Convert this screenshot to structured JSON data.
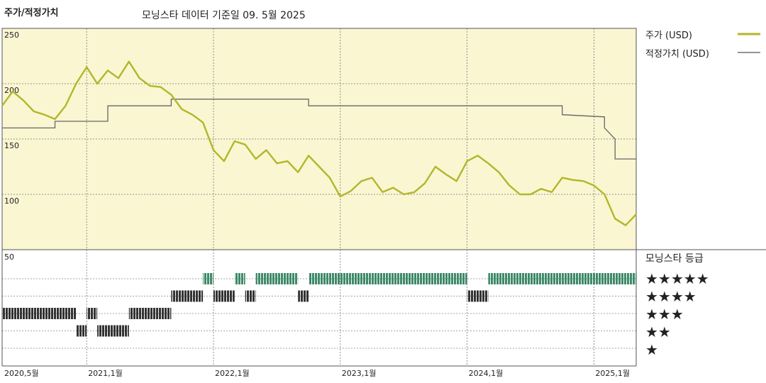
{
  "header": {
    "section_title": "주가/적정가치",
    "subtitle": "모닝스타 데이터 기준일 09. 5월 2025"
  },
  "legend": {
    "price_label": "주가 (USD)",
    "fair_value_label": "적정가치 (USD)",
    "rating_title": "모닝스타 등급",
    "stars": [
      "★★★★★",
      "★★★★",
      "★★★",
      "★★",
      "★"
    ]
  },
  "colors": {
    "price": "#b3b62a",
    "fair_value": "#666666",
    "panel_bg": "#faf6d2",
    "five_star": "#3f8a6a",
    "lower_star": "#333333"
  },
  "chart_data": {
    "type": "line",
    "x_range": [
      "2020-05",
      "2025-05"
    ],
    "x_ticks": [
      "2020,5월",
      "2021,1월",
      "2022,1월",
      "2023,1월",
      "2024,1월",
      "2025,1월"
    ],
    "y_ticks": [
      "250",
      "200",
      "150",
      "100"
    ],
    "ylim": [
      50,
      250
    ],
    "lower_ylabel": "50",
    "series": [
      {
        "id": "price",
        "points": [
          [
            "2020-05",
            180
          ],
          [
            "2020-06",
            193
          ],
          [
            "2020-07",
            185
          ],
          [
            "2020-08",
            175
          ],
          [
            "2020-09",
            172
          ],
          [
            "2020-10",
            168
          ],
          [
            "2020-11",
            180
          ],
          [
            "2020-12",
            200
          ],
          [
            "2021-01",
            215
          ],
          [
            "2021-02",
            200
          ],
          [
            "2021-03",
            212
          ],
          [
            "2021-04",
            205
          ],
          [
            "2021-05",
            220
          ],
          [
            "2021-06",
            205
          ],
          [
            "2021-07",
            198
          ],
          [
            "2021-08",
            197
          ],
          [
            "2021-09",
            190
          ],
          [
            "2021-10",
            177
          ],
          [
            "2021-11",
            172
          ],
          [
            "2021-12",
            165
          ],
          [
            "2022-01",
            140
          ],
          [
            "2022-02",
            130
          ],
          [
            "2022-03",
            148
          ],
          [
            "2022-04",
            145
          ],
          [
            "2022-05",
            132
          ],
          [
            "2022-06",
            140
          ],
          [
            "2022-07",
            128
          ],
          [
            "2022-08",
            130
          ],
          [
            "2022-09",
            120
          ],
          [
            "2022-10",
            135
          ],
          [
            "2022-11",
            125
          ],
          [
            "2022-12",
            115
          ],
          [
            "2023-01",
            98
          ],
          [
            "2023-02",
            103
          ],
          [
            "2023-03",
            112
          ],
          [
            "2023-04",
            115
          ],
          [
            "2023-05",
            102
          ],
          [
            "2023-06",
            106
          ],
          [
            "2023-07",
            100
          ],
          [
            "2023-08",
            102
          ],
          [
            "2023-09",
            110
          ],
          [
            "2023-10",
            125
          ],
          [
            "2023-11",
            118
          ],
          [
            "2023-12",
            112
          ],
          [
            "2024-01",
            130
          ],
          [
            "2024-02",
            135
          ],
          [
            "2024-03",
            128
          ],
          [
            "2024-04",
            120
          ],
          [
            "2024-05",
            108
          ],
          [
            "2024-06",
            100
          ],
          [
            "2024-07",
            100
          ],
          [
            "2024-08",
            105
          ],
          [
            "2024-09",
            102
          ],
          [
            "2024-10",
            115
          ],
          [
            "2024-11",
            113
          ],
          [
            "2024-12",
            112
          ],
          [
            "2025-01",
            108
          ],
          [
            "2025-02",
            100
          ],
          [
            "2025-03",
            78
          ],
          [
            "2025-04",
            72
          ],
          [
            "2025-05",
            82
          ]
        ]
      },
      {
        "id": "fair_value",
        "step": true,
        "points": [
          [
            "2020-05",
            160
          ],
          [
            "2020-10",
            160
          ],
          [
            "2020-10",
            166
          ],
          [
            "2021-03",
            166
          ],
          [
            "2021-03",
            180
          ],
          [
            "2021-09",
            180
          ],
          [
            "2021-09",
            186
          ],
          [
            "2022-10",
            186
          ],
          [
            "2022-10",
            180
          ],
          [
            "2024-10",
            180
          ],
          [
            "2024-10",
            172
          ],
          [
            "2025-02",
            170
          ],
          [
            "2025-02",
            160
          ],
          [
            "2025-03",
            150
          ],
          [
            "2025-03",
            132
          ],
          [
            "2025-05",
            132
          ]
        ]
      }
    ],
    "star_rating": {
      "levels": [
        5,
        4,
        3,
        2,
        1
      ],
      "periods": [
        {
          "stars": 3,
          "from": "2020-05",
          "to": "2020-12"
        },
        {
          "stars": 2,
          "from": "2020-12",
          "to": "2021-01"
        },
        {
          "stars": 3,
          "from": "2021-01",
          "to": "2021-02"
        },
        {
          "stars": 2,
          "from": "2021-02",
          "to": "2021-05"
        },
        {
          "stars": 3,
          "from": "2021-05",
          "to": "2021-09"
        },
        {
          "stars": 4,
          "from": "2021-09",
          "to": "2021-12"
        },
        {
          "stars": 5,
          "from": "2021-12",
          "to": "2022-01"
        },
        {
          "stars": 4,
          "from": "2022-01",
          "to": "2022-03"
        },
        {
          "stars": 5,
          "from": "2022-03",
          "to": "2022-04"
        },
        {
          "stars": 4,
          "from": "2022-04",
          "to": "2022-05"
        },
        {
          "stars": 5,
          "from": "2022-05",
          "to": "2022-09"
        },
        {
          "stars": 4,
          "from": "2022-09",
          "to": "2022-10"
        },
        {
          "stars": 5,
          "from": "2022-10",
          "to": "2024-01"
        },
        {
          "stars": 4,
          "from": "2024-01",
          "to": "2024-03"
        },
        {
          "stars": 5,
          "from": "2024-03",
          "to": "2025-05"
        }
      ]
    }
  }
}
